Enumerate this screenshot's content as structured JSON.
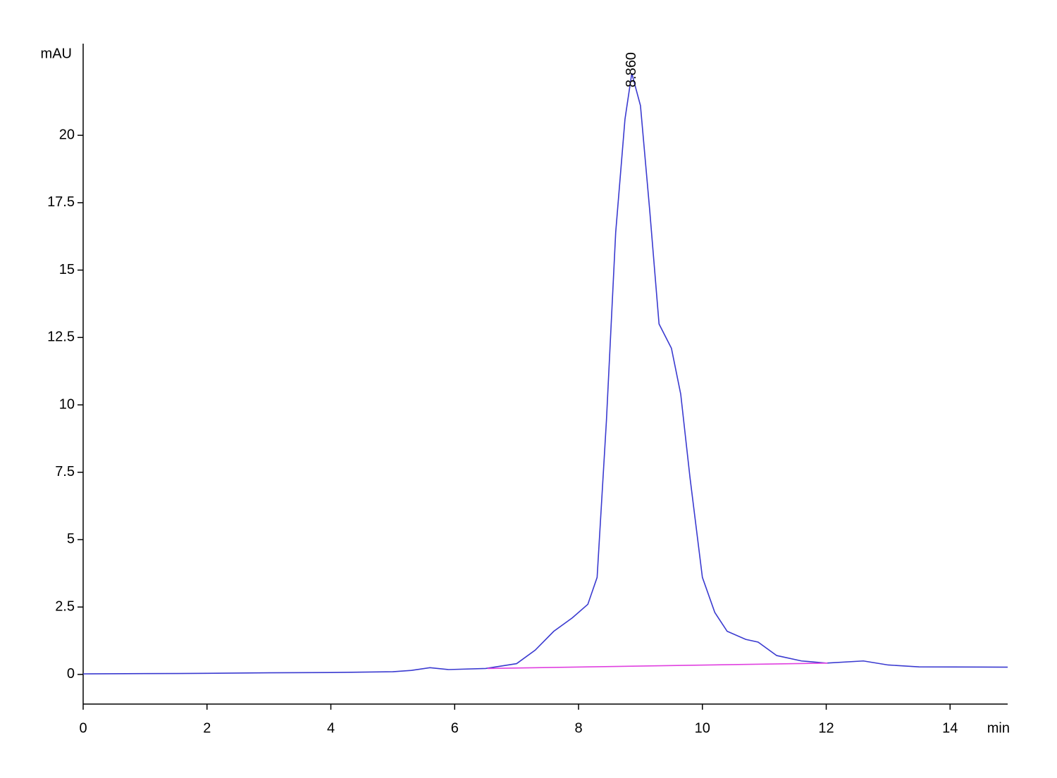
{
  "chart_data": {
    "type": "line",
    "ylabel": "mAU",
    "xlabel": "min",
    "xlim": [
      0,
      14.93
    ],
    "xticks": [
      0,
      2,
      4,
      6,
      8,
      10,
      12,
      14
    ],
    "ylim": [
      -1.1,
      23.4
    ],
    "yticks": [
      0,
      2.5,
      5,
      7.5,
      10,
      12.5,
      15,
      17.5,
      20
    ],
    "series": [
      {
        "color": "#3a3ad0",
        "x": [
          0,
          1,
          2,
          3,
          4,
          5,
          5.3,
          5.6,
          5.9,
          6.5,
          7.0,
          7.3,
          7.6,
          7.9,
          8.15,
          8.3,
          8.45,
          8.6,
          8.75,
          8.86,
          9.0,
          9.15,
          9.3,
          9.5,
          9.65,
          9.8,
          10.0,
          10.2,
          10.4,
          10.7,
          10.9,
          11.2,
          11.6,
          12.0,
          12.6,
          13.0,
          13.5,
          14.93
        ],
        "values": [
          0.02,
          0.03,
          0.04,
          0.06,
          0.07,
          0.1,
          0.15,
          0.25,
          0.18,
          0.22,
          0.4,
          0.9,
          1.6,
          2.1,
          2.6,
          3.6,
          9.4,
          16.4,
          20.6,
          22.3,
          21.1,
          17.2,
          13,
          12.1,
          10.4,
          7.3,
          3.6,
          2.3,
          1.6,
          1.3,
          1.2,
          0.7,
          0.5,
          0.42,
          0.5,
          0.35,
          0.28,
          0.27
        ]
      },
      {
        "color": "#e040e0",
        "x": [
          6.53,
          12.02
        ],
        "values": [
          0.22,
          0.42
        ]
      }
    ],
    "annotations": [
      {
        "x": 8.86,
        "label": "8.860"
      }
    ]
  }
}
